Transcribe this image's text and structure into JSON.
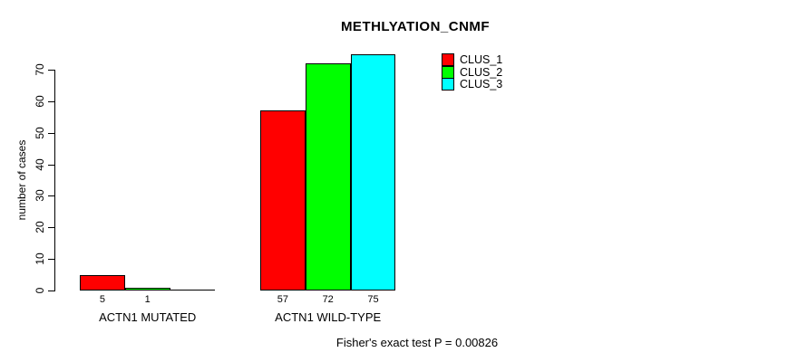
{
  "chart_data": {
    "type": "bar",
    "title": "METHLYATION_CNMF",
    "xlabel": "",
    "ylabel": "number of cases",
    "ylim": [
      0,
      70
    ],
    "yticks": [
      0,
      10,
      20,
      30,
      40,
      50,
      60,
      70
    ],
    "grid": false,
    "legend_position": "top-right",
    "categories": [
      "ACTN1 MUTATED",
      "ACTN1 WILD-TYPE"
    ],
    "series": [
      {
        "name": "CLUS_1",
        "color": "#ff0000",
        "values": [
          5,
          57
        ]
      },
      {
        "name": "CLUS_2",
        "color": "#00ff00",
        "values": [
          1,
          72
        ]
      },
      {
        "name": "CLUS_3",
        "color": "#00ffff",
        "values": [
          0,
          75
        ]
      }
    ],
    "bar_labels": [
      [
        "5",
        "1",
        ""
      ],
      [
        "57",
        "72",
        "75"
      ]
    ],
    "annotation": "Fisher's exact test P = 0.00826",
    "axis_color": "#000000",
    "bar_border_color": "#000000"
  }
}
